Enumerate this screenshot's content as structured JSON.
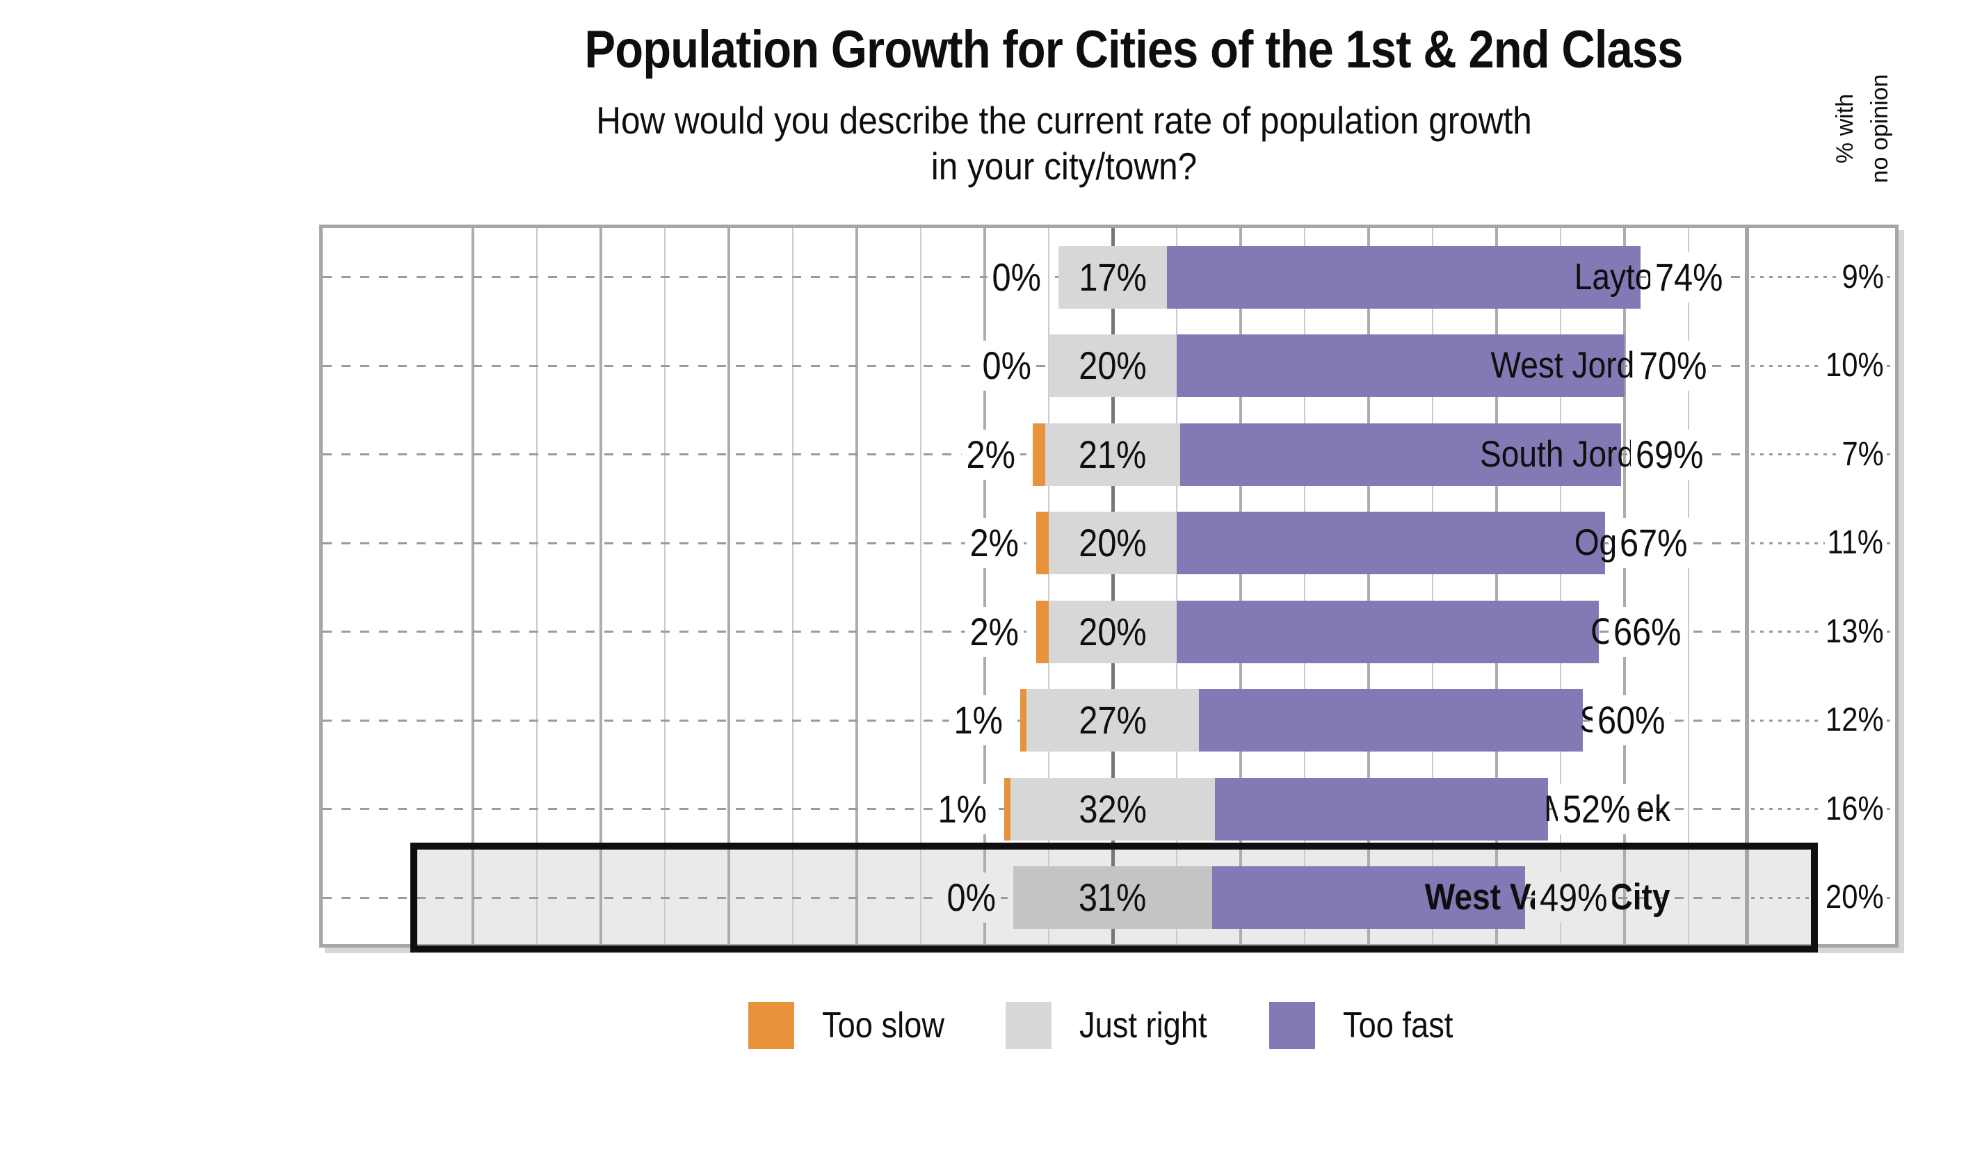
{
  "title": "Population Growth for Cities of the 1st & 2nd Class",
  "subtitle": {
    "line1": "How would you describe the current rate of population growth",
    "line2": "in your city/town?"
  },
  "right_axis_header": {
    "line1": "% with",
    "line2": "no opinion"
  },
  "legend": {
    "items": [
      {
        "label": "Too slow",
        "color": "#e8923c"
      },
      {
        "label": "Just right",
        "color": "#d7d7d7"
      },
      {
        "label": "Too fast",
        "color": "#8579b5"
      }
    ]
  },
  "colors": {
    "too_slow": "#e8923c",
    "just_right": "#d7d7d7",
    "too_fast": "#8579b5",
    "just_right_highlighted": "#c4c4c4",
    "highlight_box_fill": "#eaeaea",
    "highlight_box_border": "#0f0f0f",
    "plot_border": "#a6a6a6",
    "dashed_line": "#9b9b9b"
  },
  "value_suffix": "%",
  "chart_data": {
    "type": "bar",
    "subtype": "horizontal-diverging-stacked",
    "title": "Population Growth for Cities of the 1st & 2nd Class",
    "question": "How would you describe the current rate of population growth in your city/town?",
    "categories": [
      "Layton",
      "West Jordan",
      "South Jordan",
      "Ogden",
      "Orem",
      "Sandy",
      "Millcreek",
      "West Valley City"
    ],
    "series": [
      {
        "name": "Too slow",
        "color": "#e8923c",
        "values": [
          0,
          0,
          2,
          2,
          2,
          1,
          1,
          0
        ]
      },
      {
        "name": "Just right",
        "color": "#d7d7d7",
        "values": [
          17,
          20,
          21,
          20,
          20,
          27,
          32,
          31
        ]
      },
      {
        "name": "Too fast",
        "color": "#8579b5",
        "values": [
          74,
          70,
          69,
          67,
          66,
          60,
          52,
          49
        ]
      }
    ],
    "no_opinion_column": {
      "header": "% with no opinion",
      "values": [
        9,
        10,
        7,
        11,
        13,
        12,
        16,
        20
      ]
    },
    "highlighted_category": "West Valley City",
    "layout_hints": {
      "neutral_category_centered_at_zero": true,
      "gridline_interval_pct": 10,
      "major_gridline_interval_pct": 20,
      "grid": "on",
      "legend_position": "bottom",
      "value_labels": "shown"
    }
  }
}
